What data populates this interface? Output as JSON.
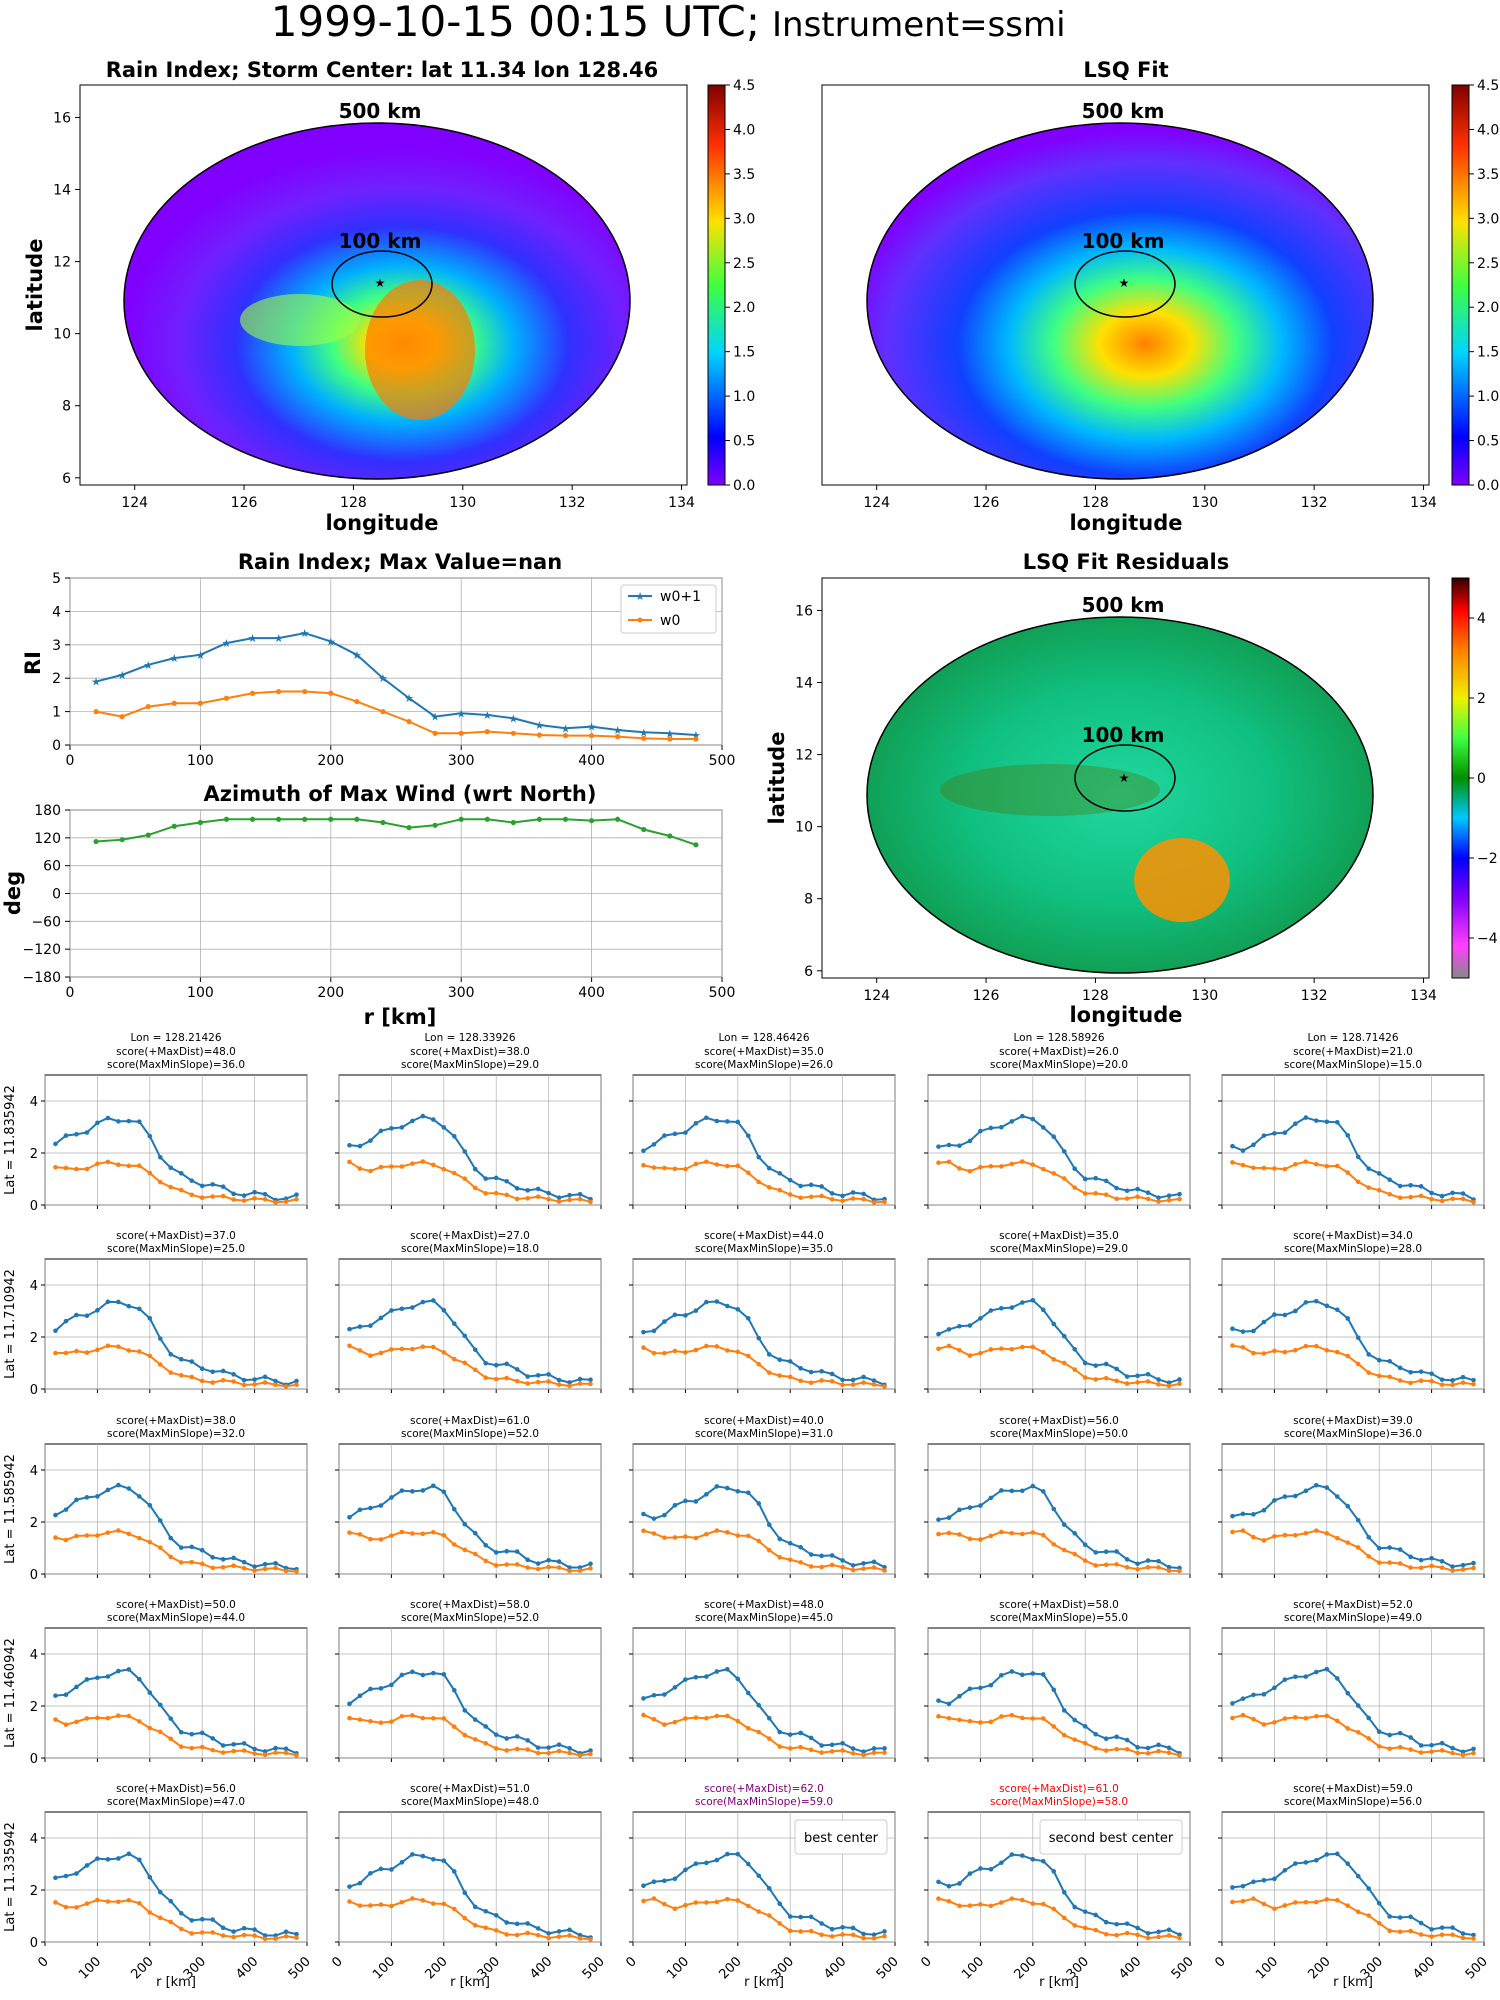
{
  "header": {
    "main_title": "1999-10-15 00:15 UTC;",
    "sub_title": "Instrument=ssmi"
  },
  "common": {
    "longitude_label": "longitude",
    "latitude_label": "latitude",
    "r_label": "r [km]",
    "ring_500": "500 km",
    "ring_100": "100 km"
  },
  "colors": {
    "w0p1": "#1f77b4",
    "w0": "#ff7f0e",
    "azimuth": "#2ca02c",
    "best": "#800080",
    "second": "#ff0000",
    "grid": "#b0b0b0"
  },
  "maps": [
    {
      "id": "rain_index_map",
      "title": "Rain Index; Storm Center: lat 11.34 lon 128.46",
      "cmap": "jet",
      "cbar_ticks": [
        "0.0",
        "0.5",
        "1.0",
        "1.5",
        "2.0",
        "2.5",
        "3.0",
        "3.5",
        "4.0",
        "4.5"
      ],
      "x_ticks": [
        "124",
        "126",
        "128",
        "130",
        "132",
        "134"
      ],
      "y_ticks": [
        "6",
        "8",
        "10",
        "12",
        "14",
        "16"
      ]
    },
    {
      "id": "lsq_fit_map",
      "title": "LSQ Fit",
      "cmap": "jet",
      "cbar_ticks": [
        "0.0",
        "0.5",
        "1.0",
        "1.5",
        "2.0",
        "2.5",
        "3.0",
        "3.5",
        "4.0",
        "4.5"
      ],
      "x_ticks": [
        "124",
        "126",
        "128",
        "130",
        "132",
        "134"
      ],
      "y_ticks": []
    },
    {
      "id": "residuals_map",
      "title": "LSQ Fit Residuals",
      "cmap": "spectral",
      "cbar_ticks": [
        "−4",
        "−2",
        "0",
        "2",
        "4"
      ],
      "x_ticks": [
        "124",
        "126",
        "128",
        "130",
        "132",
        "134"
      ],
      "y_ticks": [
        "6",
        "8",
        "10",
        "12",
        "14",
        "16"
      ]
    }
  ],
  "chart_data": [
    {
      "type": "line",
      "title": "Rain Index; Max Value=nan",
      "xlabel": "",
      "ylabel": "RI",
      "xlim": [
        0,
        500
      ],
      "ylim": [
        0,
        5
      ],
      "x_ticks": [
        "0",
        "100",
        "200",
        "300",
        "400",
        "500"
      ],
      "y_ticks": [
        "0",
        "1",
        "2",
        "3",
        "4",
        "5"
      ],
      "legend_position": "top-right",
      "x": [
        20,
        40,
        60,
        80,
        100,
        120,
        140,
        160,
        180,
        200,
        220,
        240,
        260,
        280,
        300,
        320,
        340,
        360,
        380,
        400,
        420,
        440,
        460,
        480
      ],
      "series": [
        {
          "name": "w0+1",
          "values": [
            1.9,
            2.1,
            2.4,
            2.6,
            2.7,
            3.05,
            3.2,
            3.2,
            3.35,
            3.1,
            2.7,
            2.0,
            1.4,
            0.85,
            0.95,
            0.9,
            0.8,
            0.6,
            0.5,
            0.55,
            0.45,
            0.38,
            0.35,
            0.3
          ]
        },
        {
          "name": "w0",
          "values": [
            1.0,
            0.85,
            1.15,
            1.25,
            1.25,
            1.4,
            1.55,
            1.6,
            1.6,
            1.55,
            1.3,
            1.0,
            0.7,
            0.35,
            0.35,
            0.4,
            0.35,
            0.3,
            0.28,
            0.28,
            0.25,
            0.2,
            0.18,
            0.18
          ]
        }
      ]
    },
    {
      "type": "line",
      "title": "Azimuth of Max Wind (wrt North)",
      "xlabel": "r [km]",
      "ylabel": "deg",
      "xlim": [
        0,
        500
      ],
      "ylim": [
        -180,
        180
      ],
      "x_ticks": [
        "0",
        "100",
        "200",
        "300",
        "400",
        "500"
      ],
      "y_ticks": [
        "−180",
        "−120",
        "−60",
        "0",
        "60",
        "120",
        "180"
      ],
      "x": [
        20,
        40,
        60,
        80,
        100,
        120,
        140,
        160,
        180,
        200,
        220,
        240,
        260,
        280,
        300,
        320,
        340,
        360,
        380,
        400,
        420,
        440,
        460,
        480
      ],
      "series": [
        {
          "values": [
            112,
            116,
            126,
            145,
            153,
            160,
            160,
            160,
            160,
            160,
            160,
            153,
            142,
            147,
            160,
            160,
            153,
            160,
            160,
            157,
            160,
            138,
            124,
            105
          ]
        }
      ]
    },
    {
      "type": "line",
      "grid": "5x5 small multiples",
      "xlim": [
        0,
        500
      ],
      "ylim": [
        0,
        5
      ],
      "x_ticks": [
        "0",
        "100",
        "200",
        "300",
        "400",
        "500"
      ],
      "y_ticks": [
        "0",
        "2",
        "4"
      ],
      "xlabel": "r [km]",
      "x": [
        20,
        40,
        60,
        80,
        100,
        120,
        140,
        160,
        180,
        200,
        220,
        240,
        260,
        280,
        300,
        320,
        340,
        360,
        380,
        400,
        420,
        440,
        460,
        480
      ],
      "lon_labels": [
        "Lon = 128.21426",
        "Lon = 128.33926",
        "Lon = 128.46426",
        "Lon = 128.58926",
        "Lon = 128.71426"
      ],
      "row_labels": [
        "Lat = 11.835942",
        "Lat = 11.710942",
        "Lat = 11.585942",
        "Lat = 11.460942",
        "Lat = 11.335942"
      ],
      "score_labels": [
        [
          [
            "score(+MaxDist)=48.0",
            "score(MaxMinSlope)=36.0"
          ],
          [
            "score(+MaxDist)=38.0",
            "score(MaxMinSlope)=29.0"
          ],
          [
            "score(+MaxDist)=35.0",
            "score(MaxMinSlope)=26.0"
          ],
          [
            "score(+MaxDist)=26.0",
            "score(MaxMinSlope)=20.0"
          ],
          [
            "score(+MaxDist)=21.0",
            "score(MaxMinSlope)=15.0"
          ]
        ],
        [
          [
            "score(+MaxDist)=37.0",
            "score(MaxMinSlope)=25.0"
          ],
          [
            "score(+MaxDist)=27.0",
            "score(MaxMinSlope)=18.0"
          ],
          [
            "score(+MaxDist)=44.0",
            "score(MaxMinSlope)=35.0"
          ],
          [
            "score(+MaxDist)=35.0",
            "score(MaxMinSlope)=29.0"
          ],
          [
            "score(+MaxDist)=34.0",
            "score(MaxMinSlope)=28.0"
          ]
        ],
        [
          [
            "score(+MaxDist)=38.0",
            "score(MaxMinSlope)=32.0"
          ],
          [
            "score(+MaxDist)=61.0",
            "score(MaxMinSlope)=52.0"
          ],
          [
            "score(+MaxDist)=40.0",
            "score(MaxMinSlope)=31.0"
          ],
          [
            "score(+MaxDist)=56.0",
            "score(MaxMinSlope)=50.0"
          ],
          [
            "score(+MaxDist)=39.0",
            "score(MaxMinSlope)=36.0"
          ]
        ],
        [
          [
            "score(+MaxDist)=50.0",
            "score(MaxMinSlope)=44.0"
          ],
          [
            "score(+MaxDist)=58.0",
            "score(MaxMinSlope)=52.0"
          ],
          [
            "score(+MaxDist)=48.0",
            "score(MaxMinSlope)=45.0"
          ],
          [
            "score(+MaxDist)=58.0",
            "score(MaxMinSlope)=55.0"
          ],
          [
            "score(+MaxDist)=52.0",
            "score(MaxMinSlope)=49.0"
          ]
        ],
        [
          [
            "score(+MaxDist)=56.0",
            "score(MaxMinSlope)=47.0"
          ],
          [
            "score(+MaxDist)=51.0",
            "score(MaxMinSlope)=48.0"
          ],
          [
            "score(+MaxDist)=62.0",
            "score(MaxMinSlope)=59.0"
          ],
          [
            "score(+MaxDist)=61.0",
            "score(MaxMinSlope)=58.0"
          ],
          [
            "score(+MaxDist)=59.0",
            "score(MaxMinSlope)=56.0"
          ]
        ]
      ],
      "highlight": {
        "best": [
          4,
          2
        ],
        "second": [
          4,
          3
        ]
      },
      "best_label": "best center",
      "second_label": "second best center",
      "w0p1_base": [
        2.2,
        2.35,
        2.55,
        2.75,
        2.9,
        3.1,
        3.25,
        3.3,
        3.3,
        3.1,
        2.6,
        1.95,
        1.45,
        1.1,
        0.95,
        0.85,
        0.75,
        0.6,
        0.5,
        0.45,
        0.4,
        0.35,
        0.3,
        0.28
      ],
      "w0_base": [
        1.6,
        1.45,
        1.35,
        1.4,
        1.45,
        1.55,
        1.6,
        1.6,
        1.55,
        1.45,
        1.2,
        0.95,
        0.7,
        0.5,
        0.4,
        0.35,
        0.3,
        0.28,
        0.25,
        0.22,
        0.2,
        0.18,
        0.16,
        0.15
      ],
      "peak_r": [
        [
          140,
          160,
          160,
          180,
          180
        ],
        [
          140,
          160,
          160,
          180,
          180
        ],
        [
          150,
          160,
          180,
          180,
          190
        ],
        [
          150,
          160,
          160,
          180,
          190
        ],
        [
          150,
          170,
          180,
          180,
          200
        ]
      ]
    }
  ]
}
